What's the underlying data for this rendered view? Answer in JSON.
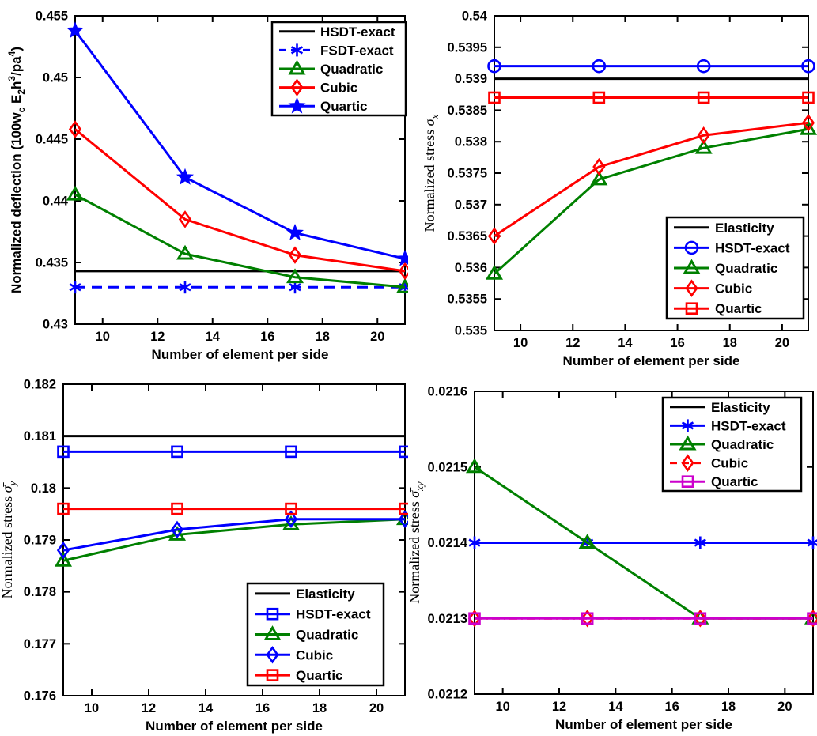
{
  "figure": {
    "description": "2x2 grid of MATLAB-style convergence plots for finite element results",
    "background": "#ffffff",
    "axis_color": "#000000"
  },
  "chart_data": [
    {
      "id": "deflection",
      "type": "line",
      "position": "top-left",
      "title": "",
      "xlabel": "Number of element per side",
      "ylabel_segments": [
        {
          "t": "Normalized deflection (100w"
        },
        {
          "t": "c",
          "style": "sub"
        },
        {
          "t": " E"
        },
        {
          "t": "2",
          "style": "sub"
        },
        {
          "t": "h"
        },
        {
          "t": "3",
          "style": "sup"
        },
        {
          "t": "/pa"
        },
        {
          "t": "4",
          "style": "sup"
        },
        {
          "t": ")"
        }
      ],
      "ylabel_font": "bold-sans",
      "xlim": [
        9,
        21
      ],
      "ylim": [
        0.43,
        0.455
      ],
      "xtick_values": [
        10,
        12,
        14,
        16,
        18,
        20
      ],
      "xtick_labels": [
        "10",
        "12",
        "14",
        "16",
        "18",
        "20"
      ],
      "ytick_values": [
        0.43,
        0.435,
        0.44,
        0.445,
        0.45,
        0.455
      ],
      "ytick_labels": [
        "0.43",
        "0.435",
        "0.44",
        "0.445",
        "0.45",
        "0.455"
      ],
      "grid": false,
      "legend_position": "top-right",
      "x": [
        9,
        13,
        17,
        21
      ],
      "series": [
        {
          "name": "HSDT-exact",
          "color": "#000000",
          "line": "solid",
          "marker": "none",
          "values": [
            0.4343,
            0.4343,
            0.4343,
            0.4343
          ]
        },
        {
          "name": "FSDT-exact",
          "color": "#0000ff",
          "line": "dashed",
          "marker": "asterisk",
          "values": [
            0.433,
            0.433,
            0.433,
            0.433
          ]
        },
        {
          "name": "Quadratic",
          "color": "#008000",
          "line": "solid",
          "marker": "triangle",
          "values": [
            0.4405,
            0.4357,
            0.4338,
            0.433
          ]
        },
        {
          "name": "Cubic",
          "color": "#ff0000",
          "line": "solid",
          "marker": "diamond",
          "values": [
            0.4458,
            0.4385,
            0.4356,
            0.4343
          ]
        },
        {
          "name": "Quartic",
          "color": "#0000ff",
          "line": "solid",
          "marker": "star5",
          "values": [
            0.4538,
            0.4419,
            0.4374,
            0.4353
          ]
        }
      ]
    },
    {
      "id": "sigma-x",
      "type": "line",
      "position": "top-right",
      "title": "",
      "xlabel": "Number of element per side",
      "ylabel_segments": [
        {
          "t": "Normalized stress "
        },
        {
          "t": "σ̄",
          "style": "italic"
        },
        {
          "t": "x",
          "style": "subitalic"
        }
      ],
      "ylabel_font": "serif",
      "xlim": [
        9,
        21
      ],
      "ylim": [
        0.535,
        0.54
      ],
      "xtick_values": [
        10,
        12,
        14,
        16,
        18,
        20
      ],
      "xtick_labels": [
        "10",
        "12",
        "14",
        "16",
        "18",
        "20"
      ],
      "ytick_values": [
        0.535,
        0.5355,
        0.536,
        0.5365,
        0.537,
        0.5375,
        0.538,
        0.5385,
        0.539,
        0.5395,
        0.54
      ],
      "ytick_labels": [
        "0.535",
        "0.5355",
        "0.536",
        "0.5365",
        "0.537",
        "0.5375",
        "0.538",
        "0.5385",
        "0.539",
        "0.5395",
        "0.54"
      ],
      "grid": false,
      "legend_position": "bottom-right",
      "x": [
        9,
        13,
        17,
        21
      ],
      "series": [
        {
          "name": "Elasticity",
          "color": "#000000",
          "line": "solid",
          "marker": "none",
          "values": [
            0.539,
            0.539,
            0.539,
            0.539
          ]
        },
        {
          "name": "HSDT-exact",
          "color": "#0000ff",
          "line": "solid",
          "marker": "circle",
          "values": [
            0.5392,
            0.5392,
            0.5392,
            0.5392
          ]
        },
        {
          "name": "Quadratic",
          "color": "#008000",
          "line": "solid",
          "marker": "triangle",
          "values": [
            0.5359,
            0.5374,
            0.5379,
            0.5382
          ]
        },
        {
          "name": "Cubic",
          "color": "#ff0000",
          "line": "solid",
          "marker": "diamond",
          "values": [
            0.5365,
            0.5376,
            0.5381,
            0.5383
          ]
        },
        {
          "name": "Quartic",
          "color": "#ff0000",
          "line": "solid",
          "marker": "square",
          "values": [
            0.5387,
            0.5387,
            0.5387,
            0.5387
          ]
        }
      ]
    },
    {
      "id": "sigma-y",
      "type": "line",
      "position": "bottom-left",
      "title": "",
      "xlabel": "Number of element per side",
      "ylabel_segments": [
        {
          "t": "Normalized stress "
        },
        {
          "t": "σ̄",
          "style": "italic"
        },
        {
          "t": "y",
          "style": "subitalic"
        }
      ],
      "ylabel_font": "serif",
      "xlim": [
        9,
        21
      ],
      "ylim": [
        0.176,
        0.182
      ],
      "xtick_values": [
        10,
        12,
        14,
        16,
        18,
        20
      ],
      "xtick_labels": [
        "10",
        "12",
        "14",
        "16",
        "18",
        "20"
      ],
      "ytick_values": [
        0.176,
        0.177,
        0.178,
        0.179,
        0.18,
        0.181,
        0.182
      ],
      "ytick_labels": [
        "0.176",
        "0.177",
        "0.178",
        "0.179",
        "0.18",
        "0.181",
        "0.182"
      ],
      "grid": false,
      "legend_position": "bottom-right",
      "x": [
        9,
        13,
        17,
        21
      ],
      "series": [
        {
          "name": "Elasticity",
          "color": "#000000",
          "line": "solid",
          "marker": "none",
          "values": [
            0.181,
            0.181,
            0.181,
            0.181
          ]
        },
        {
          "name": "HSDT-exact",
          "color": "#0000ff",
          "line": "solid",
          "marker": "square",
          "values": [
            0.1807,
            0.1807,
            0.1807,
            0.1807
          ]
        },
        {
          "name": "Quadratic",
          "color": "#008000",
          "line": "solid",
          "marker": "triangle",
          "values": [
            0.1786,
            0.1791,
            0.1793,
            0.1794
          ]
        },
        {
          "name": "Cubic",
          "color": "#0000ff",
          "line": "solid",
          "marker": "diamond",
          "values": [
            0.1788,
            0.1792,
            0.1794,
            0.1794
          ]
        },
        {
          "name": "Quartic",
          "color": "#ff0000",
          "line": "solid",
          "marker": "square",
          "values": [
            0.1796,
            0.1796,
            0.1796,
            0.1796
          ]
        }
      ]
    },
    {
      "id": "sigma-xy",
      "type": "line",
      "position": "bottom-right",
      "title": "",
      "xlabel": "Number of element per side",
      "ylabel_segments": [
        {
          "t": "Normalized stress "
        },
        {
          "t": "σ̄",
          "style": "italic"
        },
        {
          "t": "xy",
          "style": "subitalic"
        }
      ],
      "ylabel_font": "serif",
      "xlim": [
        9,
        21
      ],
      "ylim": [
        0.0212,
        0.0216
      ],
      "xtick_values": [
        10,
        12,
        14,
        16,
        18,
        20
      ],
      "xtick_labels": [
        "10",
        "12",
        "14",
        "16",
        "18",
        "20"
      ],
      "ytick_values": [
        0.0212,
        0.0213,
        0.0214,
        0.0215,
        0.0216
      ],
      "ytick_labels": [
        "0.0212",
        "0.0213",
        "0.0214",
        "0.0215",
        "0.0216"
      ],
      "grid": false,
      "legend_position": "top-right",
      "x": [
        9,
        13,
        17,
        21
      ],
      "series": [
        {
          "name": "Elasticity",
          "color": "#000000",
          "line": "solid",
          "marker": "none",
          "values": [
            0.0214,
            0.0214,
            0.0214,
            0.0214
          ]
        },
        {
          "name": "HSDT-exact",
          "color": "#0000ff",
          "line": "solid",
          "marker": "asterisk",
          "values": [
            0.0214,
            0.0214,
            0.0214,
            0.0214
          ]
        },
        {
          "name": "Quadratic",
          "color": "#008000",
          "line": "solid",
          "marker": "triangle",
          "values": [
            0.0215,
            0.0214,
            0.0213,
            0.0213
          ]
        },
        {
          "name": "Cubic",
          "color": "#ff0000",
          "line": "dashdot",
          "marker": "diamond",
          "values": [
            0.0213,
            0.0213,
            0.0213,
            0.0213
          ]
        },
        {
          "name": "Quartic",
          "color": "#cc00cc",
          "line": "solid",
          "marker": "square",
          "values": [
            0.0213,
            0.0213,
            0.0213,
            0.0213
          ]
        }
      ]
    }
  ]
}
